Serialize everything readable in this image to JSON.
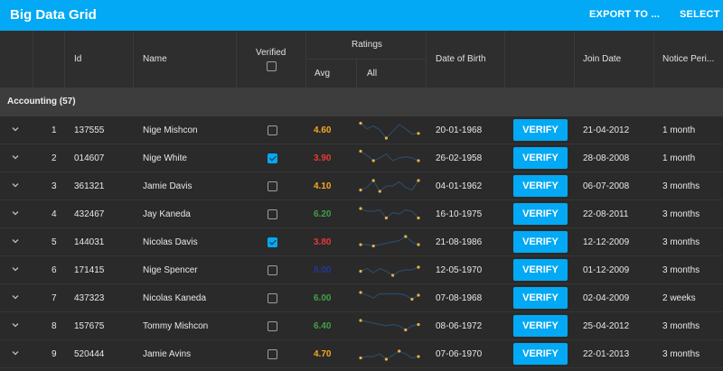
{
  "appbar": {
    "title": "Big Data Grid",
    "export_label": "EXPORT TO ...",
    "select_label": "SELECT"
  },
  "columns": {
    "id": "Id",
    "name": "Name",
    "verified": "Verified",
    "ratings": "Ratings",
    "avg": "Avg",
    "all": "All",
    "dob": "Date of Birth",
    "join": "Join Date",
    "notice": "Notice Peri..."
  },
  "group": {
    "label": "Accounting (57)"
  },
  "colors": {
    "accent": "#03a9f4",
    "avg_orange": "#f5a623",
    "avg_red": "#e53935",
    "avg_green": "#43a047",
    "avg_blue": "#283593",
    "spark_line": "#2b4a66",
    "spark_dot": "#e8b04a"
  },
  "verify_label": "VERIFY",
  "rows": [
    {
      "num": "1",
      "id": "137555",
      "name": "Nige Mishcon",
      "verified": false,
      "avg": "4.60",
      "avg_color": "#f5a623",
      "dob": "20-01-1968",
      "join": "21-04-2012",
      "notice": "1 month",
      "spark": [
        2,
        10,
        6,
        12,
        24,
        14,
        4,
        10,
        18,
        17
      ]
    },
    {
      "num": "2",
      "id": "014607",
      "name": "Nige White",
      "verified": true,
      "avg": "3.90",
      "avg_color": "#e53935",
      "dob": "26-02-1958",
      "join": "28-08-2008",
      "notice": "1 month",
      "spark": [
        2,
        8,
        16,
        12,
        6,
        16,
        12,
        10,
        12,
        16
      ]
    },
    {
      "num": "3",
      "id": "361321",
      "name": "Jamie Davis",
      "verified": false,
      "avg": "4.10",
      "avg_color": "#f5a623",
      "dob": "04-01-1962",
      "join": "06-07-2008",
      "notice": "3 months",
      "spark": [
        18,
        14,
        4,
        20,
        12,
        12,
        6,
        14,
        18,
        4
      ]
    },
    {
      "num": "4",
      "id": "432467",
      "name": "Jay Kaneda",
      "verified": false,
      "avg": "6.20",
      "avg_color": "#43a047",
      "dob": "16-10-1975",
      "join": "22-08-2011",
      "notice": "3 months",
      "spark": [
        4,
        8,
        8,
        6,
        18,
        10,
        12,
        6,
        8,
        18
      ]
    },
    {
      "num": "5",
      "id": "144031",
      "name": "Nicolas Davis",
      "verified": true,
      "avg": "3.80",
      "avg_color": "#e53935",
      "dob": "21-08-1986",
      "join": "12-12-2009",
      "notice": "3 months",
      "spark": [
        16,
        16,
        18,
        16,
        14,
        12,
        10,
        4,
        12,
        16
      ]
    },
    {
      "num": "6",
      "id": "171415",
      "name": "Nige Spencer",
      "verified": false,
      "avg": "8.00",
      "avg_color": "#283593",
      "dob": "12-05-1970",
      "join": "01-12-2009",
      "notice": "3 months",
      "spark": [
        14,
        10,
        16,
        10,
        14,
        20,
        14,
        12,
        12,
        8
      ]
    },
    {
      "num": "7",
      "id": "437323",
      "name": "Nicolas Kaneda",
      "verified": false,
      "avg": "6.00",
      "avg_color": "#43a047",
      "dob": "07-08-1968",
      "join": "02-04-2009",
      "notice": "2 weeks",
      "spark": [
        4,
        8,
        12,
        6,
        6,
        6,
        6,
        8,
        14,
        8
      ]
    },
    {
      "num": "8",
      "id": "157675",
      "name": "Tommy Mishcon",
      "verified": false,
      "avg": "6.40",
      "avg_color": "#43a047",
      "dob": "08-06-1972",
      "join": "25-04-2012",
      "notice": "3 months",
      "spark": [
        4,
        6,
        8,
        10,
        12,
        10,
        12,
        18,
        12,
        10
      ]
    },
    {
      "num": "9",
      "id": "520444",
      "name": "Jamie Avins",
      "verified": false,
      "avg": "4.70",
      "avg_color": "#f5a623",
      "dob": "07-06-1970",
      "join": "22-01-2013",
      "notice": "3 months",
      "spark": [
        18,
        16,
        16,
        12,
        20,
        14,
        8,
        12,
        18,
        16
      ]
    }
  ]
}
